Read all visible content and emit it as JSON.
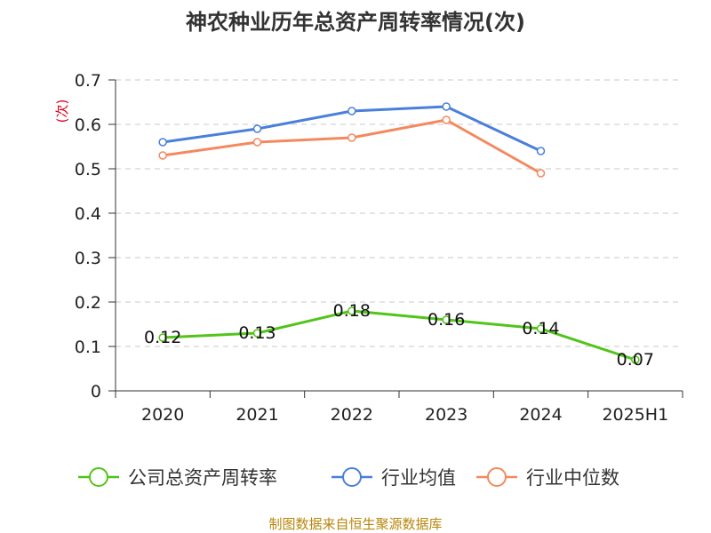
{
  "chart_data": {
    "type": "line",
    "title": "神农种业历年总资产周转率情况(次)",
    "ylabel": "(次)",
    "xlabel": "",
    "categories": [
      "2020",
      "2021",
      "2022",
      "2023",
      "2024",
      "2025H1"
    ],
    "yticks": [
      "0",
      "0.1",
      "0.2",
      "0.3",
      "0.4",
      "0.5",
      "0.6",
      "0.7"
    ],
    "ylim": [
      0,
      0.7
    ],
    "grid": true,
    "legend_position": "bottom",
    "series": [
      {
        "name": "公司总资产周转率",
        "color": "#52c41a",
        "values": [
          0.12,
          0.13,
          0.18,
          0.16,
          0.14,
          0.07
        ],
        "labels": [
          "0.12",
          "0.13",
          "0.18",
          "0.16",
          "0.14",
          "0.07"
        ]
      },
      {
        "name": "行业均值",
        "color": "#4a7fdb",
        "values": [
          0.56,
          0.59,
          0.63,
          0.64,
          0.54,
          null
        ]
      },
      {
        "name": "行业中位数",
        "color": "#f4895f",
        "values": [
          0.53,
          0.56,
          0.57,
          0.61,
          0.49,
          null
        ]
      }
    ]
  },
  "footer": "制图数据来自恒生聚源数据库"
}
